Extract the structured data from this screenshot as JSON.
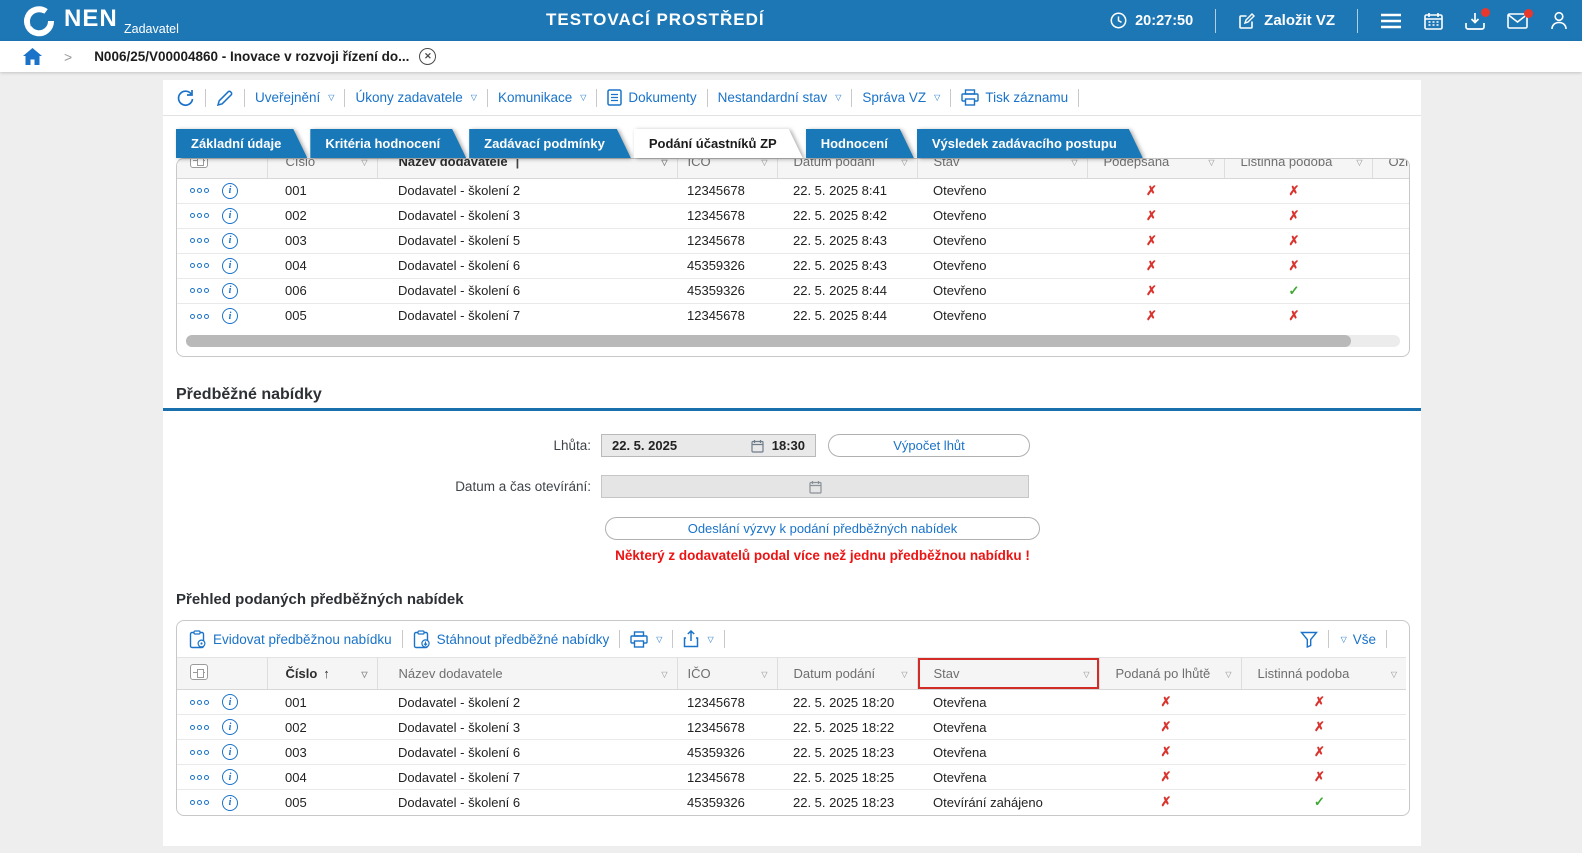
{
  "topbar": {
    "brand": "NEN",
    "brand_sub": "Zadavatel",
    "env_title": "TESTOVACÍ PROSTŘEDÍ",
    "clock": "20:27:50",
    "create_vz_label": "Založit VZ"
  },
  "breadcrumb": {
    "item": "N006/25/V00004860 - Inovace v rozvoji řízení do..."
  },
  "toolbar": {
    "items": [
      {
        "label": "Uveřejnění",
        "caret": true
      },
      {
        "label": "Úkony zadavatele",
        "caret": true
      },
      {
        "label": "Komunikace",
        "caret": true
      },
      {
        "label": "Dokumenty",
        "caret": false
      },
      {
        "label": "Nestandardní stav",
        "caret": true
      },
      {
        "label": "Správa VZ",
        "caret": true
      },
      {
        "label": "Tisk záznamu",
        "caret": false
      }
    ]
  },
  "tabs": [
    {
      "label": "Základní údaje"
    },
    {
      "label": "Kritéria hodnocení"
    },
    {
      "label": "Zadávací podmínky"
    },
    {
      "label": "Podání účastníků ZP",
      "active": true
    },
    {
      "label": "Hodnocení"
    },
    {
      "label": "Výsledek zadávacího postupu"
    }
  ],
  "table1": {
    "columns": [
      "Číslo",
      "Název dodavatele",
      "IČO",
      "Datum podání",
      "Stav",
      "Podepsána",
      "Listinná podoba",
      "Označ"
    ],
    "name_pipe": "|",
    "rows": [
      {
        "cislo": "001",
        "nazev": "Dodavatel - školení 2",
        "ico": "12345678",
        "datum": "22. 5. 2025 8:41",
        "stav": "Otevřeno",
        "f1": false,
        "f2": false
      },
      {
        "cislo": "002",
        "nazev": "Dodavatel - školení 3",
        "ico": "12345678",
        "datum": "22. 5. 2025 8:42",
        "stav": "Otevřeno",
        "f1": false,
        "f2": false
      },
      {
        "cislo": "003",
        "nazev": "Dodavatel - školení 5",
        "ico": "12345678",
        "datum": "22. 5. 2025 8:43",
        "stav": "Otevřeno",
        "f1": false,
        "f2": false
      },
      {
        "cislo": "004",
        "nazev": "Dodavatel - školení 6",
        "ico": "45359326",
        "datum": "22. 5. 2025 8:43",
        "stav": "Otevřeno",
        "f1": false,
        "f2": false
      },
      {
        "cislo": "006",
        "nazev": "Dodavatel - školení 6",
        "ico": "45359326",
        "datum": "22. 5. 2025 8:44",
        "stav": "Otevřeno",
        "f1": false,
        "f2": true
      },
      {
        "cislo": "005",
        "nazev": "Dodavatel - školení 7",
        "ico": "12345678",
        "datum": "22. 5. 2025 8:44",
        "stav": "Otevřeno",
        "f1": false,
        "f2": false
      }
    ]
  },
  "section1": {
    "title": "Předběžné nabídky",
    "lhuta_label": "Lhůta:",
    "lhuta_date": "22. 5. 2025",
    "lhuta_time": "18:30",
    "vypocet_label": "Výpočet lhůt",
    "oteviranai_label": "Datum a čas otevírání:",
    "odeslani_label": "Odeslání výzvy k podání předběžných nabídek",
    "warning": "Některý z dodavatelů podal více než jednu předběžnou nabídku !"
  },
  "section2": {
    "title": "Přehled podaných předběžných nabídek",
    "evidovat_label": "Evidovat předběžnou nabídku",
    "stahnout_label": "Stáhnout předběžné nabídky",
    "vse_label": "Vše"
  },
  "table2": {
    "columns": [
      "Číslo",
      "Název dodavatele",
      "IČO",
      "Datum podání",
      "Stav",
      "Podaná po lhůtě",
      "Listinná podoba"
    ],
    "rows": [
      {
        "cislo": "001",
        "nazev": "Dodavatel - školení 2",
        "ico": "12345678",
        "datum": "22. 5. 2025 18:20",
        "stav": "Otevřena",
        "f1": false,
        "f2": false
      },
      {
        "cislo": "002",
        "nazev": "Dodavatel - školení 3",
        "ico": "12345678",
        "datum": "22. 5. 2025 18:22",
        "stav": "Otevřena",
        "f1": false,
        "f2": false
      },
      {
        "cislo": "003",
        "nazev": "Dodavatel - školení 6",
        "ico": "45359326",
        "datum": "22. 5. 2025 18:23",
        "stav": "Otevřena",
        "f1": false,
        "f2": false
      },
      {
        "cislo": "004",
        "nazev": "Dodavatel - školení 7",
        "ico": "12345678",
        "datum": "22. 5. 2025 18:25",
        "stav": "Otevřena",
        "f1": false,
        "f2": false
      },
      {
        "cislo": "005",
        "nazev": "Dodavatel - školení 6",
        "ico": "45359326",
        "datum": "22. 5. 2025 18:23",
        "stav": "Otevírání zahájeno",
        "f1": false,
        "f2": true
      }
    ]
  },
  "colors": {
    "topbar": "#1d77b5",
    "tab": "#1878b8",
    "link": "#1a73c8",
    "rule": "#1a6fad",
    "x_mark": "#d9332d",
    "check_mark": "#3ea832",
    "warning": "#ec1313"
  }
}
